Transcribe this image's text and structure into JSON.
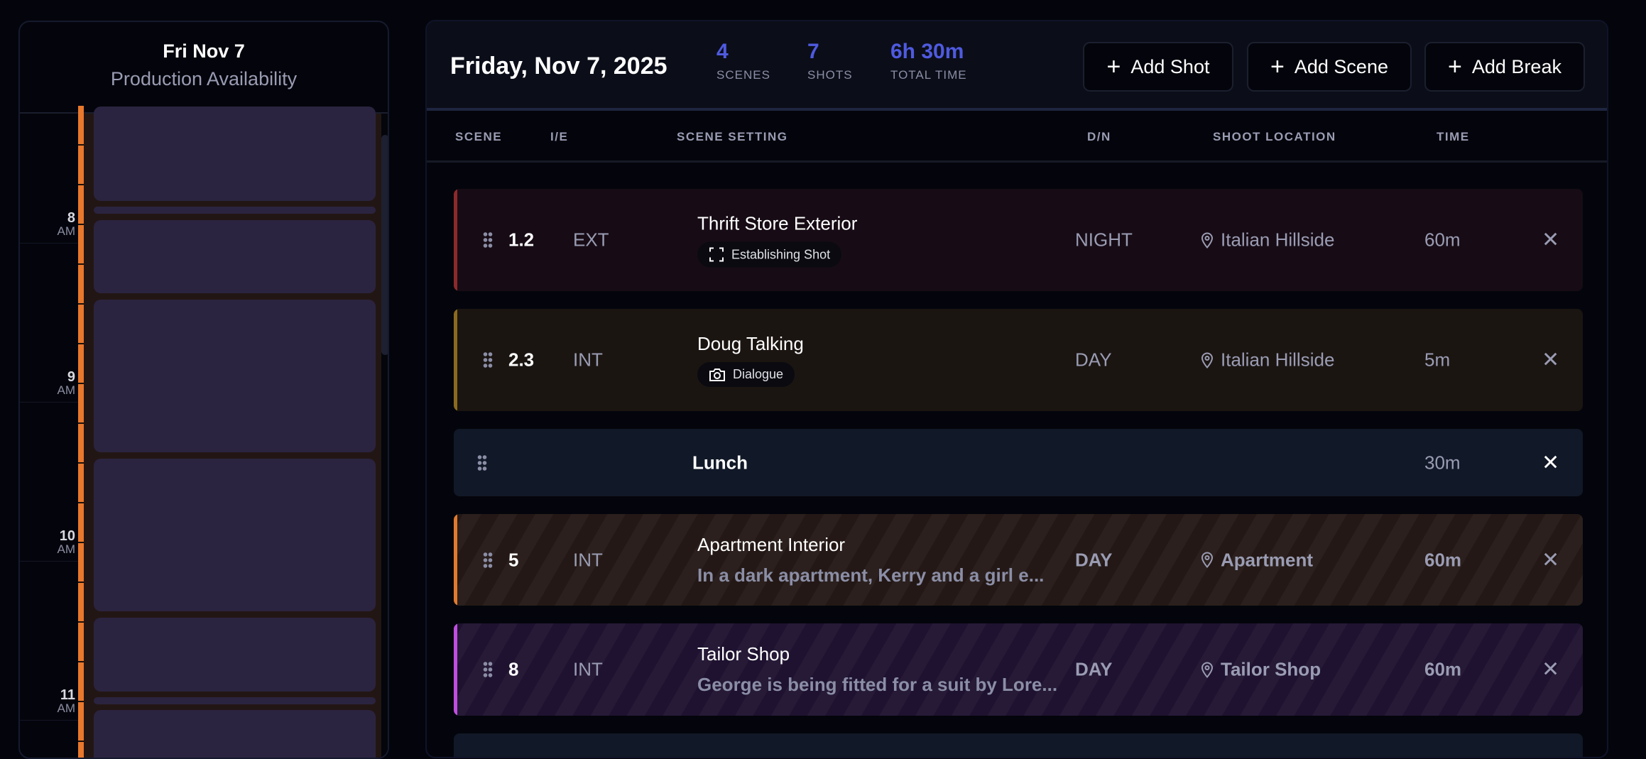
{
  "availability": {
    "date": "Fri Nov 7",
    "subtitle": "Production Availability",
    "hours": [
      {
        "h": "8",
        "ampm": "AM"
      },
      {
        "h": "9",
        "ampm": "AM"
      },
      {
        "h": "10",
        "ampm": "AM"
      },
      {
        "h": "11",
        "ampm": "AM"
      }
    ],
    "colors": {
      "bar": "#e8782c",
      "block": "#2b2440"
    }
  },
  "header": {
    "title": "Friday, Nov 7, 2025",
    "stats": [
      {
        "value": "4",
        "label": "SCENES"
      },
      {
        "value": "7",
        "label": "SHOTS"
      },
      {
        "value": "6h 30m",
        "label": "TOTAL TIME"
      }
    ],
    "buttons": [
      {
        "label": "Add Shot",
        "icon": "plus-icon"
      },
      {
        "label": "Add Scene",
        "icon": "plus-icon"
      },
      {
        "label": "Add Break",
        "icon": "plus-icon"
      }
    ]
  },
  "columns": [
    "SCENE",
    "I/E",
    "SCENE SETTING",
    "D/N",
    "SHOOT LOCATION",
    "TIME"
  ],
  "rows": [
    {
      "type": "scene",
      "scene": "1.2",
      "ie": "EXT",
      "title": "Thrift Store Exterior",
      "badge": "Establishing Shot",
      "badge_icon": "frame-icon",
      "dn": "NIGHT",
      "location": "Italian Hillside",
      "time": "60m",
      "color": "#8c2a2a",
      "bg": "#170c15"
    },
    {
      "type": "scene",
      "scene": "2.3",
      "ie": "INT",
      "title": "Doug Talking",
      "badge": "Dialogue",
      "badge_icon": "camera-icon",
      "dn": "DAY",
      "location": "Italian Hillside",
      "time": "5m",
      "color": "#8a6a1f",
      "bg": "#1b1512"
    },
    {
      "type": "break",
      "title": "Lunch",
      "time": "30m",
      "bg": "#111827"
    },
    {
      "type": "scene",
      "scene": "5",
      "ie": "INT",
      "title": "Apartment Interior",
      "description": "In a dark apartment, Kerry and a girl e...",
      "dn": "DAY",
      "location": "Apartment",
      "time": "60m",
      "color": "#e07a2e",
      "bg": "#231815"
    },
    {
      "type": "scene",
      "scene": "8",
      "ie": "INT",
      "title": "Tailor Shop",
      "description": "George is being fitted for a suit by Lore...",
      "dn": "DAY",
      "location": "Tailor Shop",
      "time": "60m",
      "color": "#c04ee0",
      "bg": "#1e1230"
    }
  ]
}
